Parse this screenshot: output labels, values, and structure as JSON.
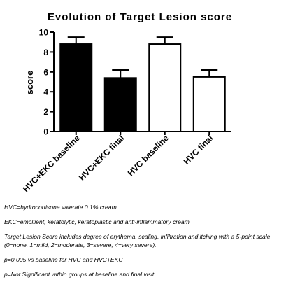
{
  "chart_data": {
    "type": "bar",
    "title": "Evolution of Target Lesion score",
    "xlabel": "",
    "ylabel": "score",
    "ylim": [
      0,
      10
    ],
    "yticks": [
      0,
      2,
      4,
      6,
      8,
      10
    ],
    "categories": [
      "HVC+EKC baseline",
      "HVC+EKC final",
      "HVC baseline",
      "HVC final"
    ],
    "values": [
      8.8,
      5.4,
      8.8,
      5.5
    ],
    "errors": [
      0.7,
      0.8,
      0.7,
      0.7
    ],
    "fills": [
      "#000000",
      "#000000",
      "#ffffff",
      "#ffffff"
    ],
    "grid": false,
    "legend": "none"
  },
  "notes": [
    "HVC=hydrocortisone valerate 0.1% cream",
    " EKC=emollient, keratolytic, keratoplastic and anti-inflammatory cream",
    "Target Lesion Score includes degree of erythema, scaling, infiltration and itching with a 5-point scale (0=none, 1=mild, 2=moderate, 3=severe, 4=very severe).",
    "p=0.005 vs baseline for HVC and HVC+EKC",
    "p=Not Significant within groups at baseline and final visit"
  ]
}
